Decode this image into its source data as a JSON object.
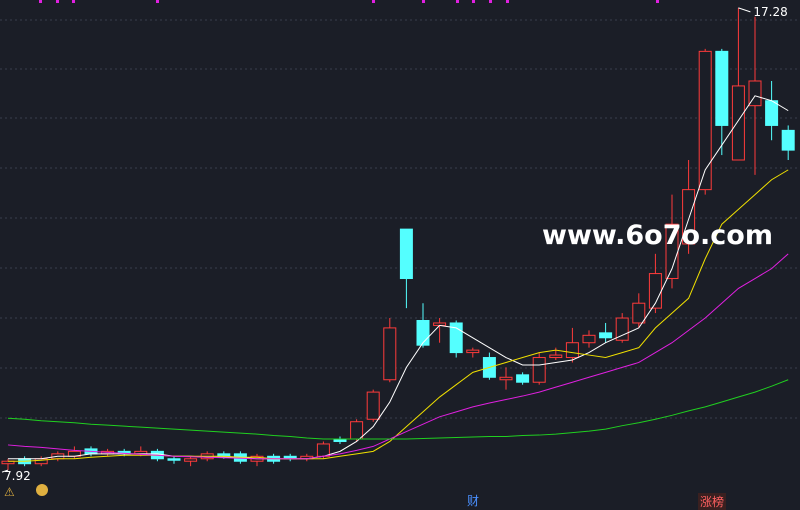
{
  "watermark": "www.6o7o.com",
  "markers": [
    "财",
    "涨榜"
  ],
  "chart_data": {
    "type": "candlestick",
    "ylim": [
      7.72,
      17.44
    ],
    "up_color": "#ff3b3b",
    "down_color": "#54ffff",
    "open": [
      8.05,
      8.15,
      8.05,
      8.15,
      8.2,
      8.35,
      8.25,
      8.3,
      8.25,
      8.3,
      8.15,
      8.1,
      8.15,
      8.25,
      8.25,
      8.1,
      8.2,
      8.2,
      8.15,
      8.2,
      8.55,
      8.55,
      8.95,
      9.75,
      12.8,
      10.95,
      10.85,
      10.9,
      10.3,
      10.2,
      9.75,
      9.85,
      9.7,
      10.2,
      10.2,
      10.5,
      10.7,
      10.55,
      10.9,
      11.2,
      11.8,
      12.5,
      13.6,
      16.4,
      14.2,
      15.3,
      15.4,
      14.8
    ],
    "high": [
      8.15,
      8.2,
      8.2,
      8.3,
      8.4,
      8.4,
      8.35,
      8.35,
      8.4,
      8.35,
      8.2,
      8.2,
      8.3,
      8.3,
      8.3,
      8.25,
      8.25,
      8.25,
      8.25,
      8.5,
      8.6,
      8.95,
      9.55,
      11.0,
      12.8,
      11.3,
      11.0,
      10.95,
      10.4,
      10.3,
      10.0,
      9.9,
      10.3,
      10.4,
      10.8,
      10.75,
      10.9,
      11.1,
      11.5,
      12.3,
      13.5,
      14.2,
      16.45,
      16.45,
      17.28,
      17.1,
      15.8,
      14.9
    ],
    "low": [
      7.92,
      8.0,
      8.0,
      8.1,
      8.15,
      8.2,
      8.2,
      8.2,
      8.2,
      8.1,
      8.05,
      8.0,
      8.1,
      8.15,
      8.05,
      8.0,
      8.05,
      8.1,
      8.1,
      8.15,
      8.45,
      8.5,
      8.9,
      9.7,
      11.2,
      10.4,
      10.5,
      10.2,
      10.2,
      9.75,
      9.55,
      9.65,
      9.65,
      10.15,
      10.1,
      10.4,
      10.5,
      10.5,
      10.8,
      11.1,
      11.6,
      12.3,
      13.5,
      14.3,
      14.2,
      13.9,
      14.6,
      14.2
    ],
    "close": [
      8.1,
      8.05,
      8.15,
      8.25,
      8.3,
      8.25,
      8.3,
      8.25,
      8.3,
      8.15,
      8.12,
      8.15,
      8.25,
      8.2,
      8.1,
      8.2,
      8.1,
      8.15,
      8.2,
      8.45,
      8.5,
      8.9,
      9.5,
      10.8,
      11.8,
      10.45,
      10.9,
      10.3,
      10.35,
      9.8,
      9.8,
      9.7,
      10.2,
      10.25,
      10.5,
      10.65,
      10.6,
      11.0,
      11.3,
      11.9,
      12.9,
      13.6,
      16.4,
      14.9,
      15.7,
      15.8,
      14.9,
      14.4
    ],
    "series": [
      {
        "color": "#ffffff",
        "values": [
          8.15,
          8.15,
          8.15,
          8.2,
          8.2,
          8.25,
          8.25,
          8.25,
          8.25,
          8.25,
          8.2,
          8.2,
          8.18,
          8.18,
          8.18,
          8.15,
          8.15,
          8.15,
          8.15,
          8.2,
          8.3,
          8.5,
          8.8,
          9.3,
          10.0,
          10.5,
          10.85,
          10.8,
          10.6,
          10.4,
          10.2,
          10.05,
          10.05,
          10.1,
          10.15,
          10.3,
          10.5,
          10.65,
          10.8,
          11.3,
          12.0,
          13.0,
          14.0,
          14.5,
          15.0,
          15.5,
          15.4,
          15.2
        ]
      },
      {
        "color": "#f0e000",
        "values": [
          8.1,
          8.1,
          8.12,
          8.15,
          8.15,
          8.18,
          8.2,
          8.22,
          8.22,
          8.22,
          8.2,
          8.2,
          8.2,
          8.2,
          8.18,
          8.18,
          8.15,
          8.15,
          8.15,
          8.15,
          8.2,
          8.25,
          8.3,
          8.5,
          8.8,
          9.1,
          9.4,
          9.65,
          9.9,
          10.0,
          10.1,
          10.2,
          10.3,
          10.35,
          10.3,
          10.25,
          10.2,
          10.3,
          10.4,
          10.8,
          11.1,
          11.4,
          12.2,
          12.9,
          13.2,
          13.5,
          13.8,
          14.0
        ]
      },
      {
        "color": "#e020e0",
        "values": [
          8.43,
          8.4,
          8.38,
          8.35,
          8.32,
          8.3,
          8.28,
          8.26,
          8.24,
          8.22,
          8.2,
          8.19,
          8.18,
          8.17,
          8.16,
          8.15,
          8.15,
          8.15,
          8.15,
          8.2,
          8.25,
          8.32,
          8.4,
          8.55,
          8.7,
          8.85,
          9.0,
          9.1,
          9.2,
          9.28,
          9.35,
          9.42,
          9.5,
          9.6,
          9.7,
          9.8,
          9.9,
          10.0,
          10.1,
          10.3,
          10.5,
          10.75,
          11.0,
          11.3,
          11.6,
          11.8,
          12.0,
          12.3
        ]
      },
      {
        "color": "#20d020",
        "values": [
          8.97,
          8.95,
          8.92,
          8.9,
          8.88,
          8.85,
          8.83,
          8.81,
          8.79,
          8.77,
          8.75,
          8.73,
          8.71,
          8.69,
          8.67,
          8.65,
          8.62,
          8.6,
          8.57,
          8.55,
          8.55,
          8.55,
          8.55,
          8.55,
          8.55,
          8.56,
          8.57,
          8.58,
          8.59,
          8.6,
          8.6,
          8.62,
          8.63,
          8.65,
          8.68,
          8.71,
          8.75,
          8.82,
          8.88,
          8.95,
          9.03,
          9.12,
          9.2,
          9.3,
          9.4,
          9.5,
          9.62,
          9.75
        ]
      }
    ]
  }
}
